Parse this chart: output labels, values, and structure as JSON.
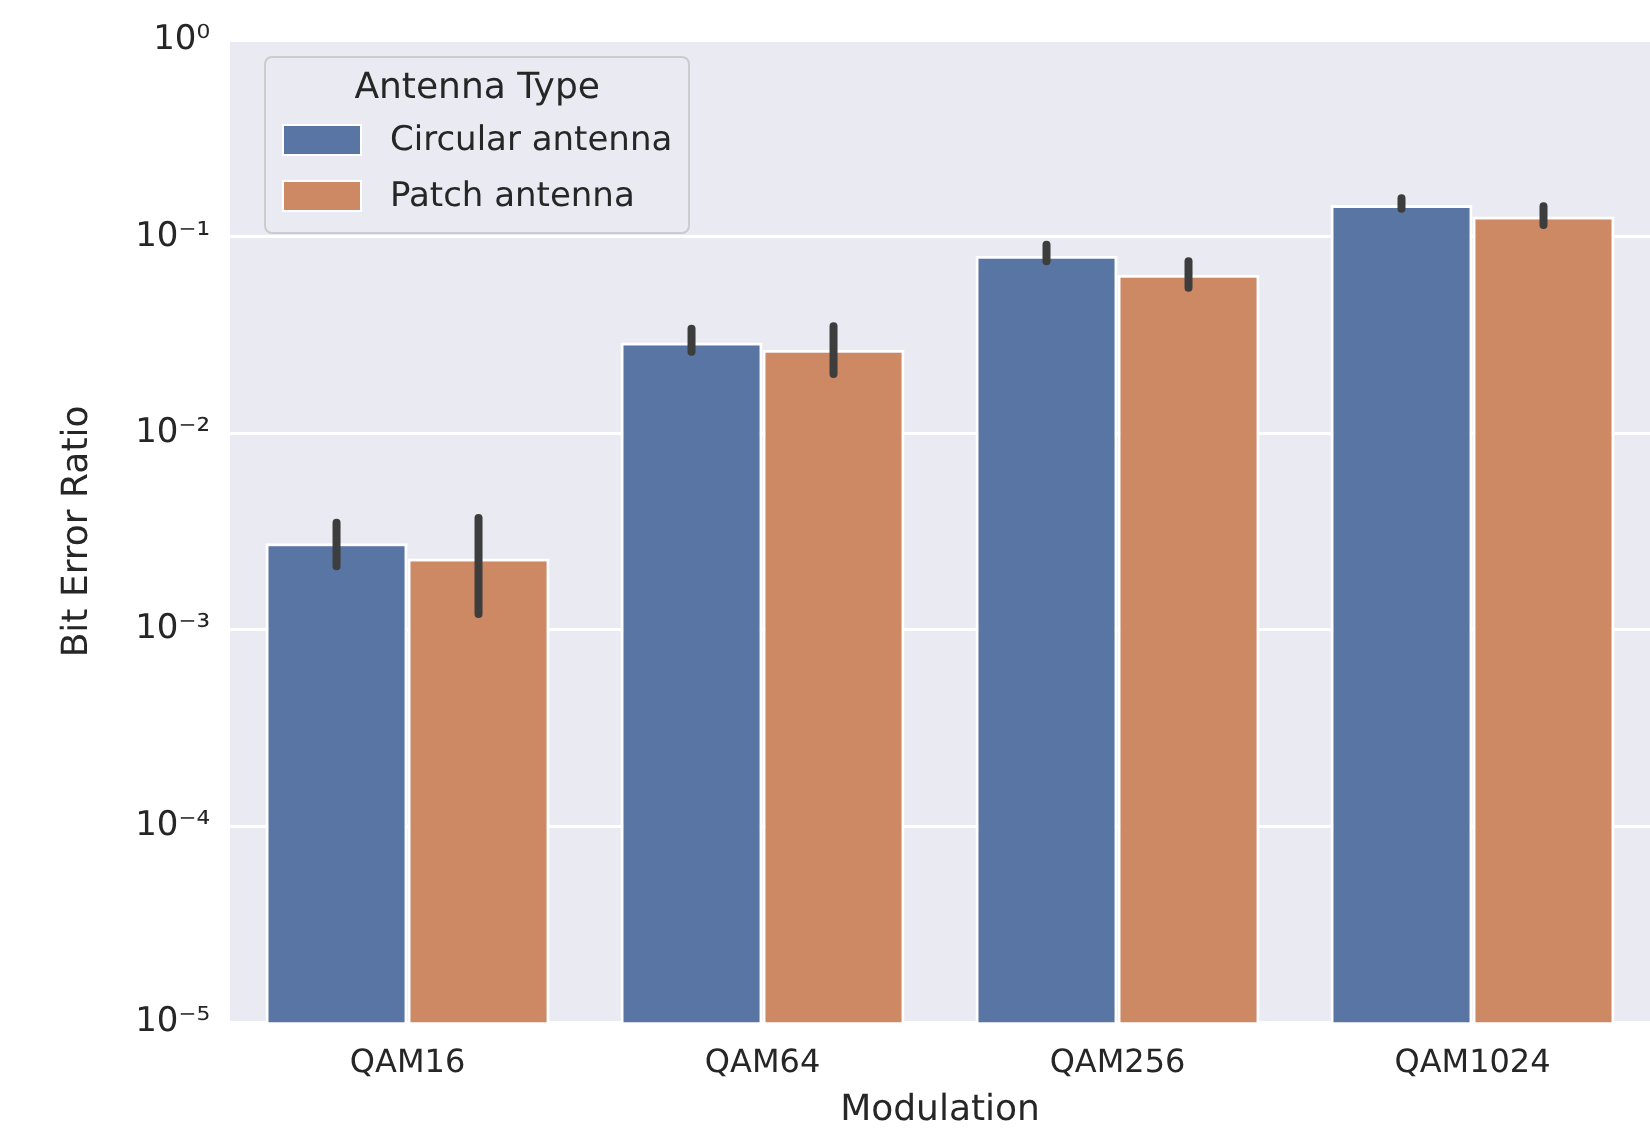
{
  "chart_data": {
    "type": "bar",
    "xlabel": "Modulation",
    "ylabel": "Bit Error Ratio",
    "legend_title": "Antenna Type",
    "categories": [
      "QAM16",
      "QAM64",
      "QAM256",
      "QAM1024"
    ],
    "series": [
      {
        "name": "Circular antenna",
        "color": "#5975a4",
        "values": [
          0.00275,
          0.029,
          0.08,
          0.145
        ],
        "errors": [
          [
            0.0021,
            0.0035
          ],
          [
            0.026,
            0.034
          ],
          [
            0.075,
            0.091
          ],
          [
            0.139,
            0.157
          ]
        ]
      },
      {
        "name": "Patch antenna",
        "color": "#cc8963",
        "values": [
          0.0023,
          0.0266,
          0.064,
          0.127
        ],
        "errors": [
          [
            0.0012,
            0.0037
          ],
          [
            0.02,
            0.035
          ],
          [
            0.055,
            0.075
          ],
          [
            0.115,
            0.143
          ]
        ]
      }
    ],
    "log": "y",
    "ylim": [
      1e-05,
      1
    ],
    "yticks": [
      {
        "value": 1e-05,
        "label": "10⁻⁵"
      },
      {
        "value": 0.0001,
        "label": "10⁻⁴"
      },
      {
        "value": 0.001,
        "label": "10⁻³"
      },
      {
        "value": 0.01,
        "label": "10⁻²"
      },
      {
        "value": 0.1,
        "label": "10⁻¹"
      },
      {
        "value": 1,
        "label": "10⁰"
      }
    ],
    "grid": "y",
    "legend": "top left"
  }
}
